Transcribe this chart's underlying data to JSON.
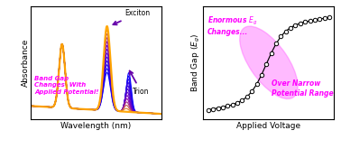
{
  "fig_width": 3.78,
  "fig_height": 1.65,
  "dpi": 100,
  "left_xlabel": "Wavelength (nm)",
  "left_ylabel": "Absorbance",
  "right_xlabel": "Applied Voltage",
  "right_ylabel": "Band Gap ($E_g$)",
  "annotation_left": "Band Gap\nChanges  With\nApplied Potential!",
  "annotation_left_color": "#ff00ff",
  "exciton_label": "Exciton",
  "trion_label": "Trion",
  "annotation_right_1": "Enormous $E_g$\nChanges...",
  "annotation_right_2": "Over Narrow\nPotential Range",
  "annotation_right_color": "#ff00ff",
  "ellipse_color": "#ff66ff",
  "ellipse_alpha": 0.45,
  "n_spectra": 13,
  "background_color": "#ffffff",
  "arrow_color": "#6600aa"
}
